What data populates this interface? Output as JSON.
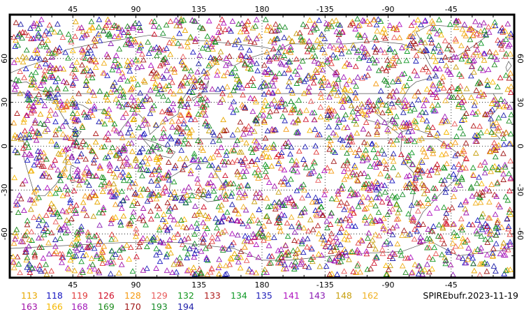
{
  "map": {
    "frame": {
      "lon_min": 0,
      "lon_max": 360,
      "lat_min": -90,
      "lat_max": 90
    },
    "top_labels": [
      "45",
      "90",
      "135",
      "180",
      "-135",
      "-90",
      "-45"
    ],
    "bottom_labels": [
      "45",
      "90",
      "135",
      "180",
      "-135",
      "-90",
      "-45"
    ],
    "left_labels": [
      "60",
      "30",
      "0",
      "-30",
      "-60"
    ],
    "right_labels": [
      "60",
      "30",
      "0",
      "-30",
      "-60"
    ],
    "grid_lons": [
      45,
      90,
      135,
      180,
      225,
      270,
      315
    ],
    "grid_lats": [
      60,
      30,
      0,
      -30,
      -60
    ],
    "marker": "triangle-outline",
    "marker_density_per_code": 155
  },
  "legend": {
    "codes": [
      {
        "label": "113",
        "color": "#e8a800"
      },
      {
        "label": "118",
        "color": "#1515c0"
      },
      {
        "label": "119",
        "color": "#e03c3c"
      },
      {
        "label": "126",
        "color": "#d0102a"
      },
      {
        "label": "128",
        "color": "#f59a12"
      },
      {
        "label": "129",
        "color": "#e85a5a"
      },
      {
        "label": "132",
        "color": "#14961e"
      },
      {
        "label": "133",
        "color": "#b01e1e"
      },
      {
        "label": "134",
        "color": "#109a28"
      },
      {
        "label": "135",
        "color": "#2020b8"
      },
      {
        "label": "141",
        "color": "#b014c0"
      },
      {
        "label": "143",
        "color": "#8c1eb4"
      },
      {
        "label": "148",
        "color": "#c8a010"
      },
      {
        "label": "162",
        "color": "#f0b020"
      },
      {
        "label": "163",
        "color": "#a010a8"
      },
      {
        "label": "166",
        "color": "#f5b800"
      },
      {
        "label": "168",
        "color": "#a018b8"
      },
      {
        "label": "169",
        "color": "#1e8c1e"
      },
      {
        "label": "170",
        "color": "#a01818"
      },
      {
        "label": "193",
        "color": "#168c28"
      },
      {
        "label": "194",
        "color": "#1e1ea8"
      }
    ],
    "stamp": "SPIREbufr.2023-11-19"
  }
}
